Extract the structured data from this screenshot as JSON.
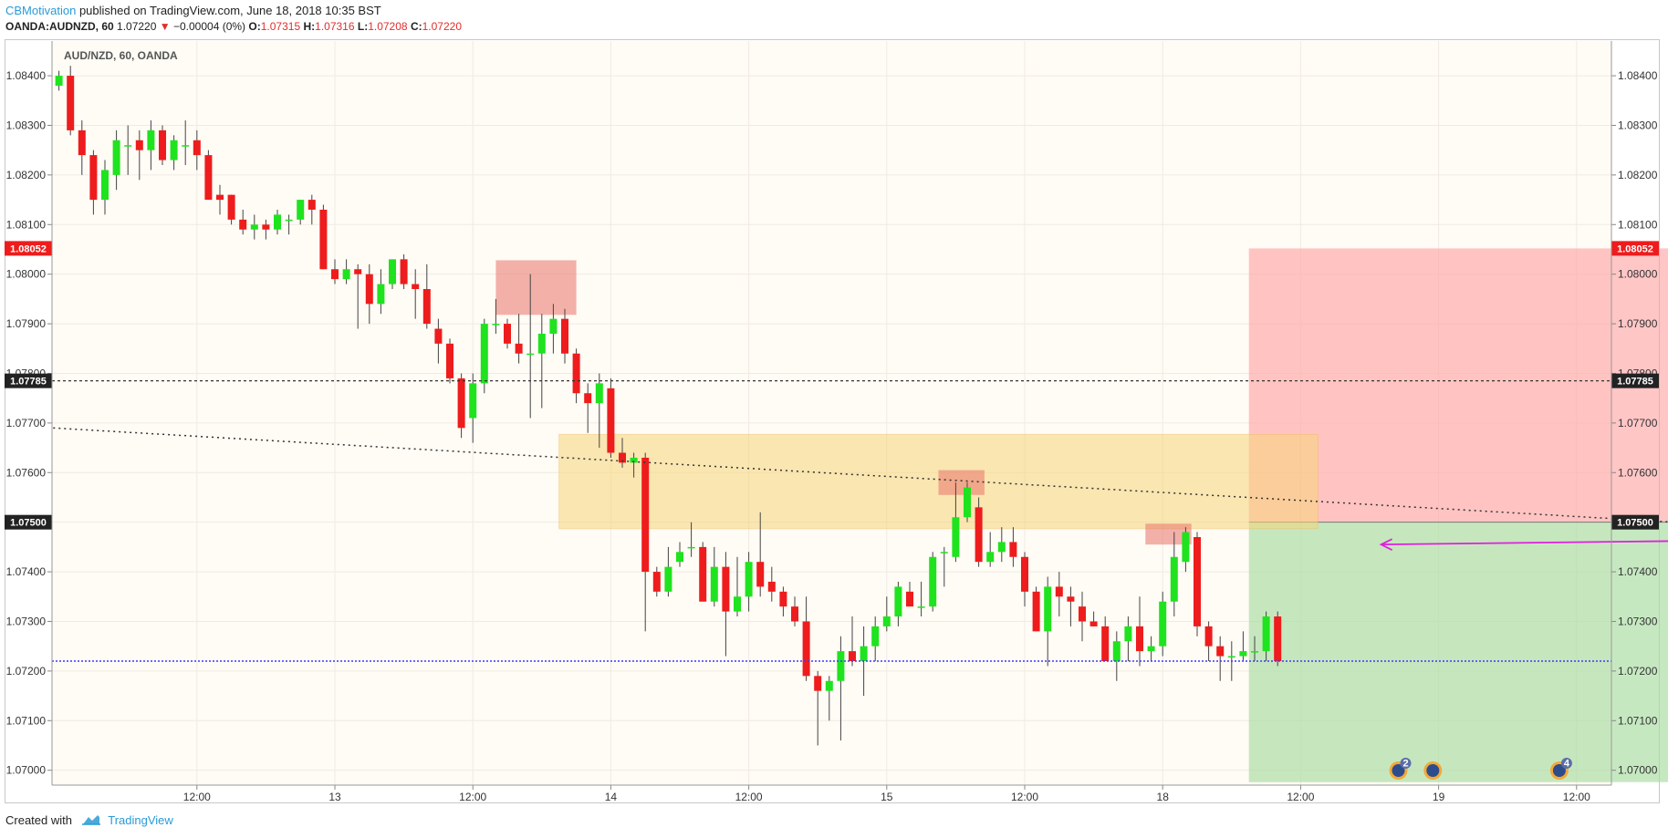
{
  "header": {
    "author": "CBMotivation",
    "published_text": "published on TradingView.com, June 18, 2018 10:35 BST",
    "symbol": "OANDA:AUDNZD, 60",
    "last": "1.07220",
    "change": "−0.00004 (0%)",
    "open_label": "O:",
    "open": "1.07315",
    "high_label": "H:",
    "high": "1.07316",
    "low_label": "L:",
    "low": "1.07208",
    "close_label": "C:",
    "close": "1.07220"
  },
  "footer": {
    "created_with": "Created with",
    "brand": "TradingView"
  },
  "colors": {
    "bull": "#1ee31e",
    "bear": "#ee1c1c",
    "wick": "#444444",
    "background": "#fffbf5",
    "stop_zone": "#ffa0a0",
    "target_zone": "#a8dba0",
    "supply_zone": "#f7d57a",
    "marker_box": "#e8726a",
    "arrow": "#e01ee0",
    "price_line": "#3a3aff"
  },
  "chart_data": {
    "type": "candlestick",
    "title": "AUD/NZD, 60, OANDA",
    "ylim": [
      1.0697,
      1.0847
    ],
    "y_ticks": [
      "1.08400",
      "1.08300",
      "1.08200",
      "1.08100",
      "1.08000",
      "1.07900",
      "1.07800",
      "1.07700",
      "1.07600",
      "1.07500",
      "1.07400",
      "1.07300",
      "1.07200",
      "1.07100",
      "1.07000"
    ],
    "x_ticks": [
      {
        "label": "12:00",
        "bar": 12
      },
      {
        "label": "13",
        "bar": 24
      },
      {
        "label": "12:00",
        "bar": 36
      },
      {
        "label": "14",
        "bar": 48
      },
      {
        "label": "12:00",
        "bar": 60
      },
      {
        "label": "15",
        "bar": 72
      },
      {
        "label": "12:00",
        "bar": 84
      },
      {
        "label": "18",
        "bar": 96
      },
      {
        "label": "12:00",
        "bar": 108
      },
      {
        "label": "19",
        "bar": 120
      },
      {
        "label": "12:00",
        "bar": 132
      }
    ],
    "price_labels": [
      {
        "value": "1.08052",
        "y": 1.08052,
        "color": "#ee1c1c"
      },
      {
        "value": "1.07785",
        "y": 1.07785,
        "color": "#222222"
      },
      {
        "value": "1.07500",
        "y": 1.075,
        "color": "#222222"
      }
    ],
    "candles": [
      [
        1.0838,
        1.084,
        1.0837,
        1.0841
      ],
      [
        1.084,
        1.0829,
        1.0828,
        1.0842
      ],
      [
        1.0829,
        1.0824,
        1.082,
        1.0831
      ],
      [
        1.0824,
        1.0815,
        1.0812,
        1.0825
      ],
      [
        1.0815,
        1.0821,
        1.0812,
        1.0823
      ],
      [
        1.082,
        1.0827,
        1.0817,
        1.0829
      ],
      [
        1.0826,
        1.0826,
        1.082,
        1.083
      ],
      [
        1.0827,
        1.0825,
        1.0819,
        1.0829
      ],
      [
        1.0825,
        1.0829,
        1.0821,
        1.0831
      ],
      [
        1.0829,
        1.0823,
        1.0822,
        1.083
      ],
      [
        1.0823,
        1.0827,
        1.0821,
        1.0828
      ],
      [
        1.0826,
        1.0826,
        1.0822,
        1.0831
      ],
      [
        1.0827,
        1.0824,
        1.0821,
        1.0829
      ],
      [
        1.0824,
        1.0815,
        1.0815,
        1.0825
      ],
      [
        1.0816,
        1.0815,
        1.0812,
        1.0818
      ],
      [
        1.0816,
        1.0811,
        1.081,
        1.0816
      ],
      [
        1.0811,
        1.0809,
        1.0808,
        1.0813
      ],
      [
        1.0809,
        1.081,
        1.0807,
        1.0812
      ],
      [
        1.081,
        1.0809,
        1.0807,
        1.0811
      ],
      [
        1.0809,
        1.0812,
        1.0808,
        1.0813
      ],
      [
        1.0811,
        1.0811,
        1.0808,
        1.0812
      ],
      [
        1.0811,
        1.0815,
        1.081,
        1.0815
      ],
      [
        1.0815,
        1.0813,
        1.081,
        1.0816
      ],
      [
        1.0813,
        1.0801,
        1.0801,
        1.0814
      ],
      [
        1.0801,
        1.0799,
        1.0798,
        1.0803
      ],
      [
        1.0799,
        1.0801,
        1.0798,
        1.0803
      ],
      [
        1.0801,
        1.08,
        1.0789,
        1.0802
      ],
      [
        1.08,
        1.0794,
        1.079,
        1.0802
      ],
      [
        1.0794,
        1.0798,
        1.0792,
        1.0801
      ],
      [
        1.0798,
        1.0803,
        1.0797,
        1.0803
      ],
      [
        1.0803,
        1.0798,
        1.0797,
        1.0804
      ],
      [
        1.0798,
        1.0797,
        1.0791,
        1.0801
      ],
      [
        1.0797,
        1.079,
        1.0789,
        1.0802
      ],
      [
        1.0789,
        1.0786,
        1.0782,
        1.0791
      ],
      [
        1.0786,
        1.0779,
        1.0778,
        1.0787
      ],
      [
        1.0779,
        1.0769,
        1.0767,
        1.078
      ],
      [
        1.0771,
        1.0778,
        1.0766,
        1.078
      ],
      [
        1.0778,
        1.079,
        1.0776,
        1.0791
      ],
      [
        1.079,
        1.079,
        1.0788,
        1.0795
      ],
      [
        1.079,
        1.0786,
        1.0785,
        1.0791
      ],
      [
        1.0786,
        1.0784,
        1.0782,
        1.0792
      ],
      [
        1.0784,
        1.0784,
        1.0771,
        1.08
      ],
      [
        1.0784,
        1.0788,
        1.0773,
        1.0792
      ],
      [
        1.0788,
        1.0791,
        1.0784,
        1.0794
      ],
      [
        1.0791,
        1.0784,
        1.0782,
        1.0793
      ],
      [
        1.0784,
        1.0776,
        1.0774,
        1.0785
      ],
      [
        1.0776,
        1.0774,
        1.0768,
        1.0778
      ],
      [
        1.0774,
        1.0778,
        1.0765,
        1.078
      ],
      [
        1.0777,
        1.0764,
        1.0763,
        1.0779
      ],
      [
        1.0764,
        1.0762,
        1.0761,
        1.0767
      ],
      [
        1.0762,
        1.0763,
        1.0759,
        1.0764
      ],
      [
        1.0763,
        1.074,
        1.0728,
        1.0764
      ],
      [
        1.074,
        1.0736,
        1.0735,
        1.0741
      ],
      [
        1.0736,
        1.0741,
        1.0735,
        1.0745
      ],
      [
        1.0742,
        1.0744,
        1.0741,
        1.0746
      ],
      [
        1.0745,
        1.0745,
        1.0743,
        1.075
      ],
      [
        1.0745,
        1.0734,
        1.0734,
        1.0746
      ],
      [
        1.0734,
        1.0741,
        1.0733,
        1.0745
      ],
      [
        1.0741,
        1.0732,
        1.0723,
        1.0744
      ],
      [
        1.0732,
        1.0735,
        1.0731,
        1.0743
      ],
      [
        1.0735,
        1.0742,
        1.0732,
        1.0744
      ],
      [
        1.0742,
        1.0737,
        1.0735,
        1.0752
      ],
      [
        1.0738,
        1.0736,
        1.0734,
        1.0741
      ],
      [
        1.0736,
        1.0733,
        1.0731,
        1.0737
      ],
      [
        1.0733,
        1.073,
        1.0729,
        1.0735
      ],
      [
        1.073,
        1.0719,
        1.0718,
        1.0735
      ],
      [
        1.0719,
        1.0716,
        1.0705,
        1.072
      ],
      [
        1.0716,
        1.0718,
        1.071,
        1.0719
      ],
      [
        1.0718,
        1.0724,
        1.0706,
        1.0727
      ],
      [
        1.0724,
        1.0722,
        1.0721,
        1.0731
      ],
      [
        1.0722,
        1.0725,
        1.0715,
        1.0729
      ],
      [
        1.0725,
        1.0729,
        1.0722,
        1.0731
      ],
      [
        1.0729,
        1.0731,
        1.0728,
        1.0735
      ],
      [
        1.0731,
        1.0737,
        1.0729,
        1.0738
      ],
      [
        1.0736,
        1.0733,
        1.0733,
        1.0738
      ],
      [
        1.0733,
        1.0733,
        1.0731,
        1.0738
      ],
      [
        1.0733,
        1.0743,
        1.0732,
        1.0744
      ],
      [
        1.0744,
        1.0744,
        1.0737,
        1.0745
      ],
      [
        1.0743,
        1.0751,
        1.0742,
        1.0758
      ],
      [
        1.0751,
        1.0757,
        1.075,
        1.0758
      ],
      [
        1.0753,
        1.0742,
        1.0741,
        1.0755
      ],
      [
        1.0742,
        1.0744,
        1.0741,
        1.0748
      ],
      [
        1.0744,
        1.0746,
        1.0742,
        1.0749
      ],
      [
        1.0746,
        1.0743,
        1.0741,
        1.0749
      ],
      [
        1.0743,
        1.0736,
        1.0733,
        1.0744
      ],
      [
        1.0736,
        1.0728,
        1.0728,
        1.0737
      ],
      [
        1.0728,
        1.0737,
        1.0721,
        1.0739
      ],
      [
        1.0737,
        1.0735,
        1.0731,
        1.074
      ],
      [
        1.0735,
        1.0734,
        1.0729,
        1.0737
      ],
      [
        1.0733,
        1.073,
        1.0726,
        1.0736
      ],
      [
        1.073,
        1.0729,
        1.0729,
        1.0732
      ],
      [
        1.0729,
        1.0722,
        1.0722,
        1.0731
      ],
      [
        1.0722,
        1.0726,
        1.0718,
        1.0728
      ],
      [
        1.0726,
        1.0729,
        1.0722,
        1.0731
      ],
      [
        1.0729,
        1.0724,
        1.0721,
        1.0735
      ],
      [
        1.0724,
        1.0725,
        1.0722,
        1.0727
      ],
      [
        1.0725,
        1.0734,
        1.0723,
        1.0736
      ],
      [
        1.0734,
        1.0743,
        1.0731,
        1.0748
      ],
      [
        1.0742,
        1.0748,
        1.074,
        1.0749
      ],
      [
        1.0747,
        1.0729,
        1.0727,
        1.0748
      ],
      [
        1.0729,
        1.0725,
        1.0722,
        1.073
      ],
      [
        1.0725,
        1.0723,
        1.0718,
        1.0727
      ],
      [
        1.0723,
        1.0723,
        1.0718,
        1.0726
      ],
      [
        1.0723,
        1.0724,
        1.0722,
        1.0728
      ],
      [
        1.0724,
        1.0724,
        1.0722,
        1.0727
      ],
      [
        1.0724,
        1.0731,
        1.0722,
        1.0732
      ],
      [
        1.0731,
        1.0722,
        1.0721,
        1.0732
      ]
    ],
    "last_price_line": 1.0722,
    "resistance_line": 1.07785,
    "trendline": {
      "from_bar": -0.5,
      "from_value": 1.0769,
      "to_bar": 140.5,
      "to_value": 1.075
    },
    "supply_zone": {
      "from_bar": 43.5,
      "to_bar": 109.5,
      "top": 1.07677,
      "bottom": 1.07487
    },
    "marker_boxes": [
      {
        "from_bar": 38,
        "to_bar": 45,
        "top": 1.08028,
        "bottom": 1.07918
      },
      {
        "from_bar": 76.5,
        "to_bar": 80.5,
        "top": 1.07605,
        "bottom": 1.07555
      },
      {
        "from_bar": 94.5,
        "to_bar": 98.5,
        "top": 1.07497,
        "bottom": 1.07455
      }
    ],
    "position": {
      "from_bar": 103.5,
      "to_bar": 140.5,
      "stop": 1.08052,
      "entry": 1.075,
      "target": 1.06976
    },
    "arrow": {
      "from_bar": 140.5,
      "from_value": 1.07462,
      "to_bar": 115,
      "to_value": 1.07455
    },
    "event_badges": [
      {
        "bar": 116.5,
        "count": "2"
      },
      {
        "bar": 119.5,
        "count": ""
      },
      {
        "bar": 130.5,
        "count": "4"
      }
    ]
  }
}
